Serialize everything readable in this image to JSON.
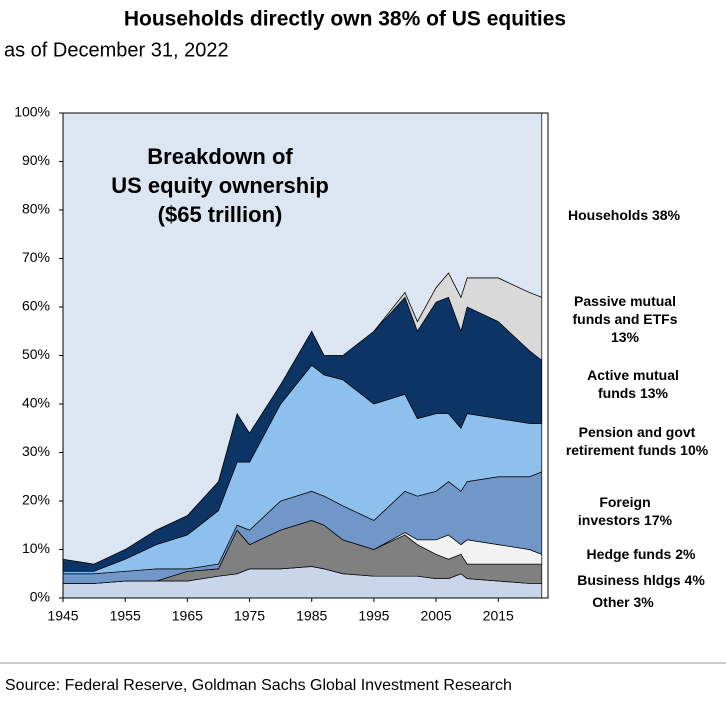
{
  "chart_data": {
    "type": "stacked-area",
    "title": "Households directly own 38% of US equities",
    "subtitle": "as of December 31, 2022",
    "annotation": [
      "Breakdown of",
      "US equity ownership",
      "($65 trillion)"
    ],
    "source": "Source: Federal Reserve, Goldman Sachs Global Investment Research",
    "x": [
      1945,
      1950,
      1955,
      1960,
      1965,
      1970,
      1973,
      1975,
      1980,
      1985,
      1987,
      1990,
      1995,
      2000,
      2002,
      2005,
      2007,
      2009,
      2010,
      2015,
      2020,
      2022
    ],
    "series": [
      {
        "name": "Other 3%",
        "color": "#c9d6ea",
        "values": [
          3,
          3,
          3.5,
          3.5,
          3.5,
          4.5,
          5,
          6,
          6,
          6.5,
          6,
          5,
          4.5,
          4.5,
          4.5,
          4,
          4,
          5,
          4,
          3.5,
          3,
          3
        ]
      },
      {
        "name": "Business hldgs 4%",
        "color": "#808080",
        "values": [
          0,
          0,
          0,
          0,
          2,
          1.5,
          9,
          5,
          8,
          9.5,
          9,
          7,
          5.5,
          8.5,
          6.5,
          5,
          4,
          4,
          3,
          3.5,
          4,
          4
        ]
      },
      {
        "name": "Hedge funds 2%",
        "color": "#f2f2f2",
        "values": [
          0,
          0,
          0,
          0,
          0,
          0,
          0,
          0,
          0,
          0,
          0,
          0,
          0,
          0.5,
          1,
          3,
          5,
          2,
          5,
          4,
          3,
          2
        ]
      },
      {
        "name": "Foreign investors 17%",
        "color": "#7097c8",
        "values": [
          2,
          2,
          2,
          2.5,
          0.5,
          1,
          1,
          3,
          6,
          6,
          6,
          7,
          6,
          8.5,
          9,
          10,
          11,
          11,
          12,
          14,
          15,
          17
        ]
      },
      {
        "name": "Pension and govt retirement funds 10%",
        "color": "#8dc0ec",
        "values": [
          0.5,
          0.5,
          2.5,
          5,
          7,
          11,
          13,
          14,
          20,
          26,
          25,
          26,
          24,
          20,
          16,
          16,
          14,
          13,
          14,
          12,
          11,
          10
        ]
      },
      {
        "name": "Active mutual funds 13%",
        "color": "#0c3566",
        "values": [
          2.5,
          1.5,
          2,
          3,
          4,
          6,
          10,
          6,
          4,
          7,
          4,
          5,
          15,
          20,
          18,
          23,
          24,
          20,
          22,
          20,
          15,
          13
        ]
      },
      {
        "name": "Passive mutual funds and ETFs 13%",
        "color": "#d9d9d9",
        "values": [
          0,
          0,
          0,
          0,
          0,
          0,
          0,
          0,
          0,
          0,
          0,
          0,
          0,
          1,
          2,
          3,
          5,
          7,
          6,
          9,
          12,
          13
        ]
      },
      {
        "name": "Households 38%",
        "color": "#dce6f2",
        "values": [
          92,
          93,
          90,
          86,
          83,
          76,
          62,
          66,
          56,
          45,
          50,
          50,
          45,
          37,
          43,
          36,
          33,
          38,
          34,
          34,
          37,
          38
        ]
      }
    ],
    "xlim": [
      1945,
      2023
    ],
    "xticks": [
      1945,
      1955,
      1965,
      1975,
      1985,
      1995,
      2005,
      2015
    ],
    "ylim": [
      0,
      100
    ],
    "yticks": [
      {
        "value": 0,
        "label": "0%"
      },
      {
        "value": 10,
        "label": "10%"
      },
      {
        "value": 20,
        "label": "20%"
      },
      {
        "value": 30,
        "label": "30%"
      },
      {
        "value": 40,
        "label": "40%"
      },
      {
        "value": 50,
        "label": "50%"
      },
      {
        "value": 60,
        "label": "60%"
      },
      {
        "value": 70,
        "label": "70%"
      },
      {
        "value": 80,
        "label": "80%"
      },
      {
        "value": 90,
        "label": "90%"
      },
      {
        "value": 100,
        "label": "100%"
      }
    ]
  }
}
